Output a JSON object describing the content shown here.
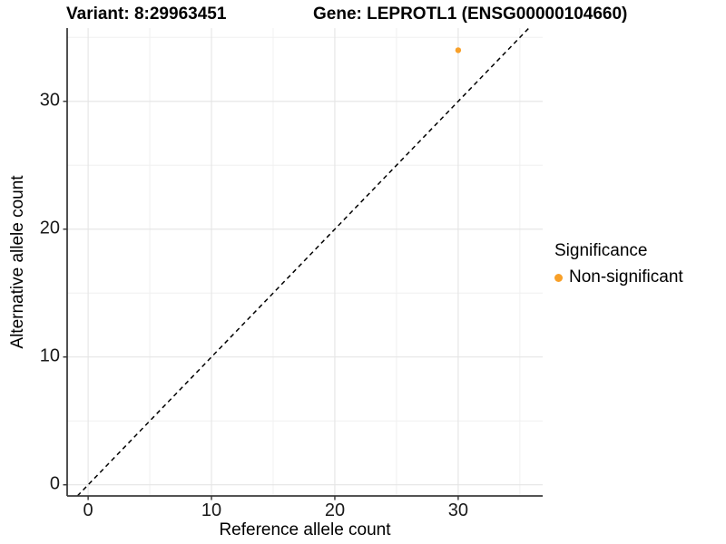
{
  "titles": {
    "left": "Variant: 8:29963451",
    "right": "Gene: LEPROTL1 (ENSG00000104660)"
  },
  "chart_data": {
    "type": "scatter",
    "xlabel": "Reference allele count",
    "ylabel": "Alternative allele count",
    "xlim": [
      -1.7,
      36.85
    ],
    "ylim": [
      -0.87,
      35.73
    ],
    "xticks": [
      0,
      10,
      20,
      30
    ],
    "yticks": [
      0,
      10,
      20,
      30
    ],
    "minor_xticks": [
      5,
      15,
      25,
      35
    ],
    "minor_yticks": [
      5,
      15,
      25,
      35
    ],
    "grid": "major and minor gridlines on white background",
    "identity_line": {
      "slope": 1,
      "intercept": 0,
      "style": "dashed",
      "color": "#000000"
    },
    "series": [
      {
        "name": "Non-significant",
        "color": "#F8A029",
        "points": [
          {
            "x": 30,
            "y": 34
          }
        ]
      }
    ],
    "legend": {
      "title": "Significance",
      "position": "right",
      "items": [
        {
          "label": "Non-significant",
          "color": "#F8A029"
        }
      ]
    }
  },
  "colors": {
    "axis_line": "#3c3c3c",
    "tick_mark": "#333333",
    "grid_major": "#e4e4e4",
    "grid_minor": "#f0f0f0",
    "tick_text": "#1a1a1a",
    "point": "#F8A029"
  }
}
